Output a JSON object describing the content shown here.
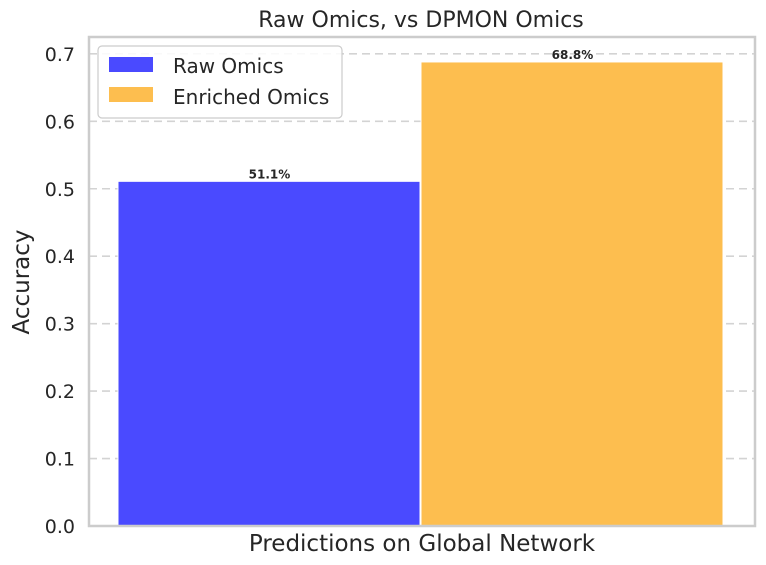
{
  "chart_data": {
    "type": "bar",
    "title": "Raw Omics, vs DPMON Omics",
    "xlabel": "Predictions on Global Network",
    "ylabel": "Accuracy",
    "ylim": [
      0,
      0.725
    ],
    "yticks": [
      "0.0",
      "0.1",
      "0.2",
      "0.3",
      "0.4",
      "0.5",
      "0.6",
      "0.7"
    ],
    "grid": true,
    "legend_position": "top-left",
    "series": [
      {
        "name": "Raw Omics",
        "value": 0.511,
        "label": "51.1%",
        "color": "#4a4aff"
      },
      {
        "name": "Enriched Omics",
        "value": 0.688,
        "label": "68.8%",
        "color": "#fdbe4f"
      }
    ]
  }
}
